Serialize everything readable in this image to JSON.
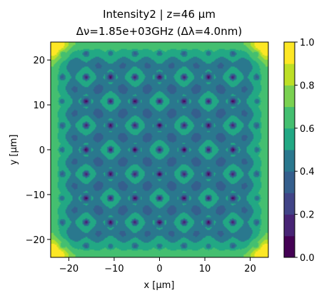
{
  "chart_data": {
    "type": "heatmap",
    "title_line1": "Intensity2 | z=46 μm",
    "title_line2": "Δν=1.85e+03GHz (Δλ=4.0nm)",
    "xlabel": "x [μm]",
    "ylabel": "y [μm]",
    "xlim": [
      -24,
      24
    ],
    "ylim": [
      -24,
      24
    ],
    "xticks": [
      -20,
      -10,
      0,
      10,
      20
    ],
    "xtick_labels": [
      "−20",
      "−10",
      "0",
      "10",
      "20"
    ],
    "yticks": [
      -20,
      -10,
      0,
      10,
      20
    ],
    "ytick_labels": [
      "−20",
      "−10",
      "0",
      "10",
      "20"
    ],
    "grid": false,
    "colormap": "viridis",
    "colorbar": {
      "levels": [
        0.0,
        0.1,
        0.2,
        0.3,
        0.4,
        0.5,
        0.6,
        0.7,
        0.8,
        0.9,
        1.0
      ],
      "ticks": [
        0.0,
        0.2,
        0.4,
        0.6,
        0.8,
        1.0
      ],
      "tick_labels": [
        "0.0",
        "0.2",
        "0.4",
        "0.6",
        "0.8",
        "1.0"
      ],
      "colors": [
        "#440154",
        "#482475",
        "#414487",
        "#355f8d",
        "#2a788e",
        "#21918c",
        "#22a884",
        "#44bf70",
        "#7ad151",
        "#bddf26",
        "#fde725"
      ]
    },
    "pattern": {
      "grid_period_um": 5.4,
      "grid_center_um": [
        0,
        0
      ],
      "dip_extent_um": 21.5,
      "background_level": 0.6,
      "dip_level": 0.05,
      "corner_level": 1.0
    }
  }
}
